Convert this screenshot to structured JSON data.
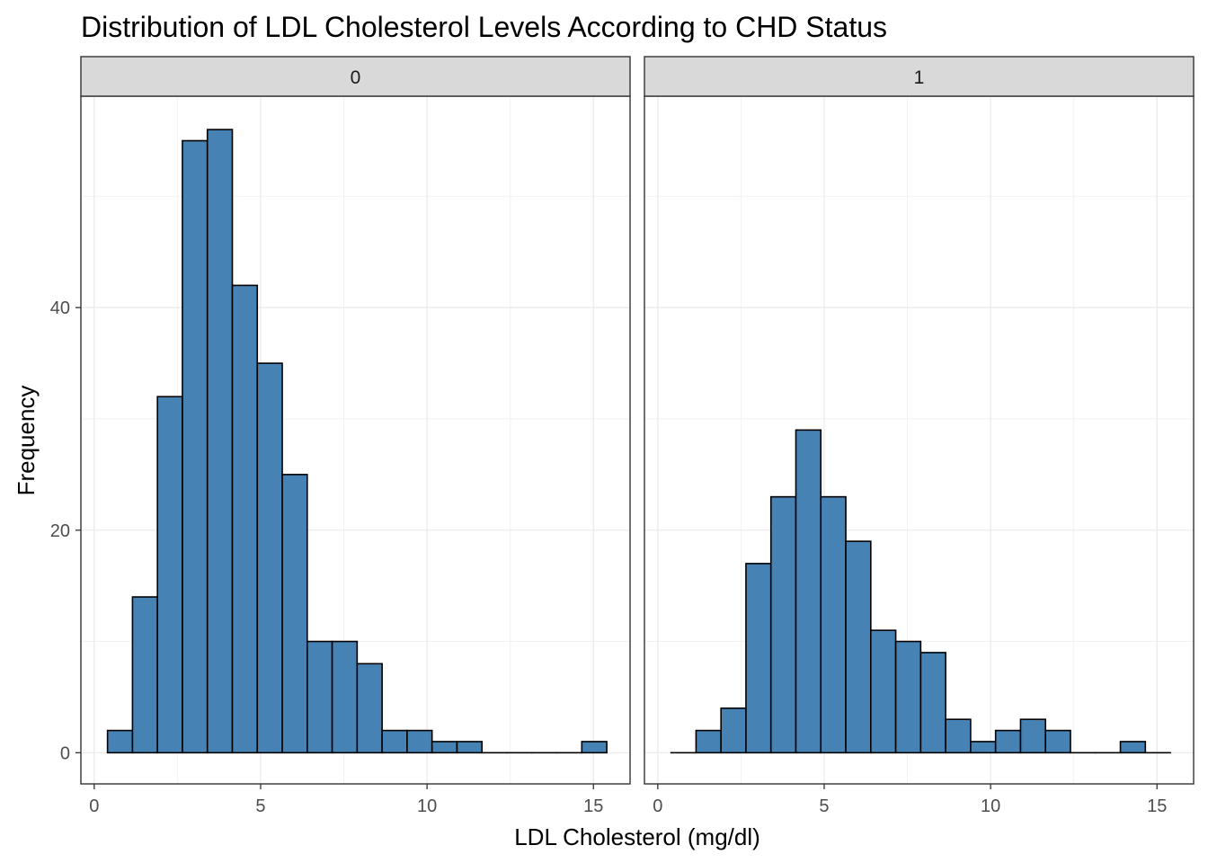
{
  "chart_data": {
    "type": "bar",
    "title": "Distribution of LDL Cholesterol Levels According to CHD Status",
    "xlabel": "LDL Cholesterol (mg/dl)",
    "ylabel": "Frequency",
    "xlim": [
      -0.4,
      16.1
    ],
    "ylim": [
      -2.8,
      59
    ],
    "x_ticks": [
      0,
      5,
      10,
      15
    ],
    "y_ticks": [
      0,
      20,
      40
    ],
    "grid": true,
    "bin_start": 0.4,
    "bin_width": 0.75,
    "bar_fill": "#4682B4",
    "bar_stroke": "#000000",
    "strip_fill": "#D9D9D9",
    "panels": [
      {
        "label": "0",
        "values": [
          2,
          14,
          32,
          55,
          56,
          42,
          35,
          25,
          10,
          10,
          8,
          2,
          2,
          1,
          1,
          0,
          0,
          0,
          0,
          1
        ]
      },
      {
        "label": "1",
        "values": [
          0,
          2,
          4,
          17,
          23,
          29,
          23,
          19,
          11,
          10,
          9,
          3,
          1,
          2,
          3,
          2,
          0,
          0,
          1,
          0
        ]
      }
    ]
  }
}
